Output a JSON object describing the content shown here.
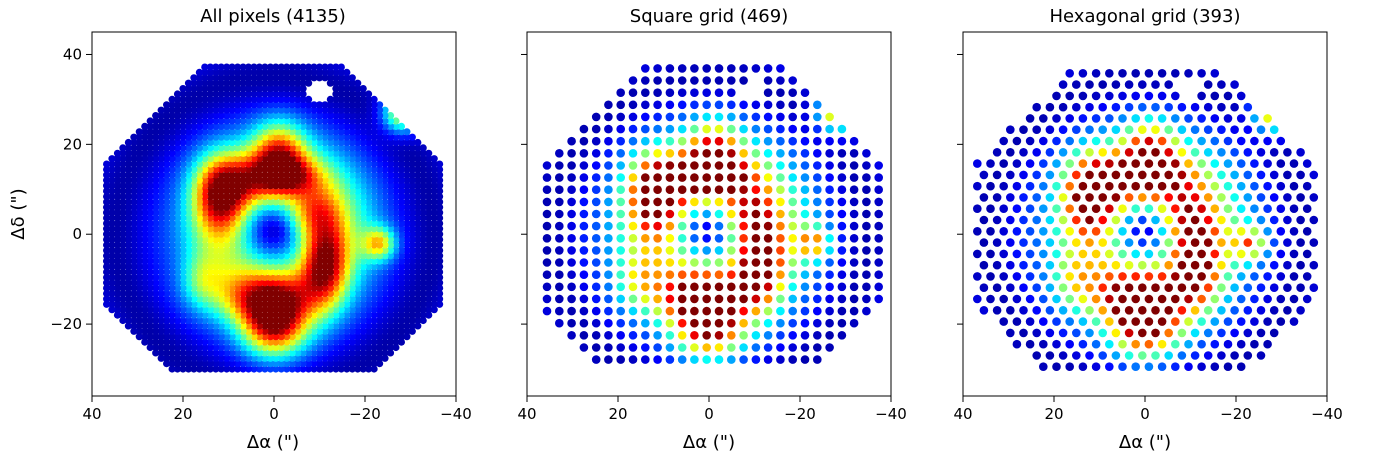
{
  "chart_data": [
    {
      "type": "scatter",
      "title": "All pixels (4135)",
      "xlabel": "Δα (\")",
      "ylabel": "Δδ (\")",
      "xlim": [
        40,
        -40
      ],
      "ylim": [
        -36,
        45
      ],
      "xticks": [
        40,
        20,
        0,
        -20,
        -40
      ],
      "xtick_labels": [
        "40",
        "20",
        "0",
        "−20",
        "−40"
      ],
      "yticks": [
        40,
        20,
        0,
        -20
      ],
      "ytick_labels": [
        "40",
        "20",
        "0",
        "−20"
      ],
      "grid": "pixels",
      "spacing": 1.2,
      "colormap": "jet"
    },
    {
      "type": "scatter",
      "title": "Square grid (469)",
      "xlabel": "Δα (\")",
      "ylabel": "",
      "xlim": [
        40,
        -40
      ],
      "ylim": [
        -36,
        45
      ],
      "xticks": [
        40,
        20,
        0,
        -20,
        -40
      ],
      "xtick_labels": [
        "40",
        "20",
        "0",
        "−20",
        "−40"
      ],
      "yticks": [
        40,
        20,
        0,
        -20
      ],
      "ytick_labels": [
        "",
        "",
        "",
        ""
      ],
      "grid": "square",
      "spacing": 2.7,
      "colormap": "jet"
    },
    {
      "type": "scatter",
      "title": "Hexagonal grid (393)",
      "xlabel": "Δα (\")",
      "ylabel": "",
      "xlim": [
        40,
        -40
      ],
      "ylim": [
        -36,
        45
      ],
      "xticks": [
        40,
        20,
        0,
        -20,
        -40
      ],
      "xtick_labels": [
        "40",
        "20",
        "0",
        "−20",
        "−40"
      ],
      "yticks": [
        40,
        20,
        0,
        -20
      ],
      "ytick_labels": [
        "",
        "",
        "",
        ""
      ],
      "grid": "hexagonal",
      "spacing": 2.9,
      "colormap": "jet"
    }
  ]
}
